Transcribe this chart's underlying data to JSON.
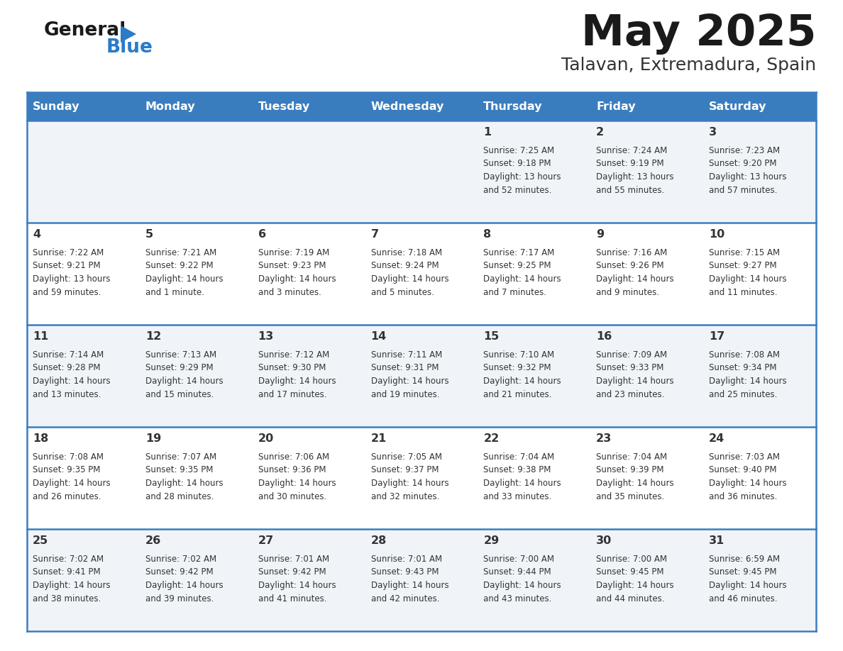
{
  "title": "May 2025",
  "subtitle": "Talavan, Extremadura, Spain",
  "header_color": "#3a7dbf",
  "header_text_color": "#ffffff",
  "day_names": [
    "Sunday",
    "Monday",
    "Tuesday",
    "Wednesday",
    "Thursday",
    "Friday",
    "Saturday"
  ],
  "bg_color": "#ffffff",
  "cell_bg_even": "#f0f4f8",
  "cell_bg_odd": "#ffffff",
  "row_line_color": "#3a7dbf",
  "text_color": "#333333",
  "calendar": [
    [
      {
        "day": "",
        "info": ""
      },
      {
        "day": "",
        "info": ""
      },
      {
        "day": "",
        "info": ""
      },
      {
        "day": "",
        "info": ""
      },
      {
        "day": "1",
        "info": "Sunrise: 7:25 AM\nSunset: 9:18 PM\nDaylight: 13 hours\nand 52 minutes."
      },
      {
        "day": "2",
        "info": "Sunrise: 7:24 AM\nSunset: 9:19 PM\nDaylight: 13 hours\nand 55 minutes."
      },
      {
        "day": "3",
        "info": "Sunrise: 7:23 AM\nSunset: 9:20 PM\nDaylight: 13 hours\nand 57 minutes."
      }
    ],
    [
      {
        "day": "4",
        "info": "Sunrise: 7:22 AM\nSunset: 9:21 PM\nDaylight: 13 hours\nand 59 minutes."
      },
      {
        "day": "5",
        "info": "Sunrise: 7:21 AM\nSunset: 9:22 PM\nDaylight: 14 hours\nand 1 minute."
      },
      {
        "day": "6",
        "info": "Sunrise: 7:19 AM\nSunset: 9:23 PM\nDaylight: 14 hours\nand 3 minutes."
      },
      {
        "day": "7",
        "info": "Sunrise: 7:18 AM\nSunset: 9:24 PM\nDaylight: 14 hours\nand 5 minutes."
      },
      {
        "day": "8",
        "info": "Sunrise: 7:17 AM\nSunset: 9:25 PM\nDaylight: 14 hours\nand 7 minutes."
      },
      {
        "day": "9",
        "info": "Sunrise: 7:16 AM\nSunset: 9:26 PM\nDaylight: 14 hours\nand 9 minutes."
      },
      {
        "day": "10",
        "info": "Sunrise: 7:15 AM\nSunset: 9:27 PM\nDaylight: 14 hours\nand 11 minutes."
      }
    ],
    [
      {
        "day": "11",
        "info": "Sunrise: 7:14 AM\nSunset: 9:28 PM\nDaylight: 14 hours\nand 13 minutes."
      },
      {
        "day": "12",
        "info": "Sunrise: 7:13 AM\nSunset: 9:29 PM\nDaylight: 14 hours\nand 15 minutes."
      },
      {
        "day": "13",
        "info": "Sunrise: 7:12 AM\nSunset: 9:30 PM\nDaylight: 14 hours\nand 17 minutes."
      },
      {
        "day": "14",
        "info": "Sunrise: 7:11 AM\nSunset: 9:31 PM\nDaylight: 14 hours\nand 19 minutes."
      },
      {
        "day": "15",
        "info": "Sunrise: 7:10 AM\nSunset: 9:32 PM\nDaylight: 14 hours\nand 21 minutes."
      },
      {
        "day": "16",
        "info": "Sunrise: 7:09 AM\nSunset: 9:33 PM\nDaylight: 14 hours\nand 23 minutes."
      },
      {
        "day": "17",
        "info": "Sunrise: 7:08 AM\nSunset: 9:34 PM\nDaylight: 14 hours\nand 25 minutes."
      }
    ],
    [
      {
        "day": "18",
        "info": "Sunrise: 7:08 AM\nSunset: 9:35 PM\nDaylight: 14 hours\nand 26 minutes."
      },
      {
        "day": "19",
        "info": "Sunrise: 7:07 AM\nSunset: 9:35 PM\nDaylight: 14 hours\nand 28 minutes."
      },
      {
        "day": "20",
        "info": "Sunrise: 7:06 AM\nSunset: 9:36 PM\nDaylight: 14 hours\nand 30 minutes."
      },
      {
        "day": "21",
        "info": "Sunrise: 7:05 AM\nSunset: 9:37 PM\nDaylight: 14 hours\nand 32 minutes."
      },
      {
        "day": "22",
        "info": "Sunrise: 7:04 AM\nSunset: 9:38 PM\nDaylight: 14 hours\nand 33 minutes."
      },
      {
        "day": "23",
        "info": "Sunrise: 7:04 AM\nSunset: 9:39 PM\nDaylight: 14 hours\nand 35 minutes."
      },
      {
        "day": "24",
        "info": "Sunrise: 7:03 AM\nSunset: 9:40 PM\nDaylight: 14 hours\nand 36 minutes."
      }
    ],
    [
      {
        "day": "25",
        "info": "Sunrise: 7:02 AM\nSunset: 9:41 PM\nDaylight: 14 hours\nand 38 minutes."
      },
      {
        "day": "26",
        "info": "Sunrise: 7:02 AM\nSunset: 9:42 PM\nDaylight: 14 hours\nand 39 minutes."
      },
      {
        "day": "27",
        "info": "Sunrise: 7:01 AM\nSunset: 9:42 PM\nDaylight: 14 hours\nand 41 minutes."
      },
      {
        "day": "28",
        "info": "Sunrise: 7:01 AM\nSunset: 9:43 PM\nDaylight: 14 hours\nand 42 minutes."
      },
      {
        "day": "29",
        "info": "Sunrise: 7:00 AM\nSunset: 9:44 PM\nDaylight: 14 hours\nand 43 minutes."
      },
      {
        "day": "30",
        "info": "Sunrise: 7:00 AM\nSunset: 9:45 PM\nDaylight: 14 hours\nand 44 minutes."
      },
      {
        "day": "31",
        "info": "Sunrise: 6:59 AM\nSunset: 9:45 PM\nDaylight: 14 hours\nand 46 minutes."
      }
    ]
  ]
}
